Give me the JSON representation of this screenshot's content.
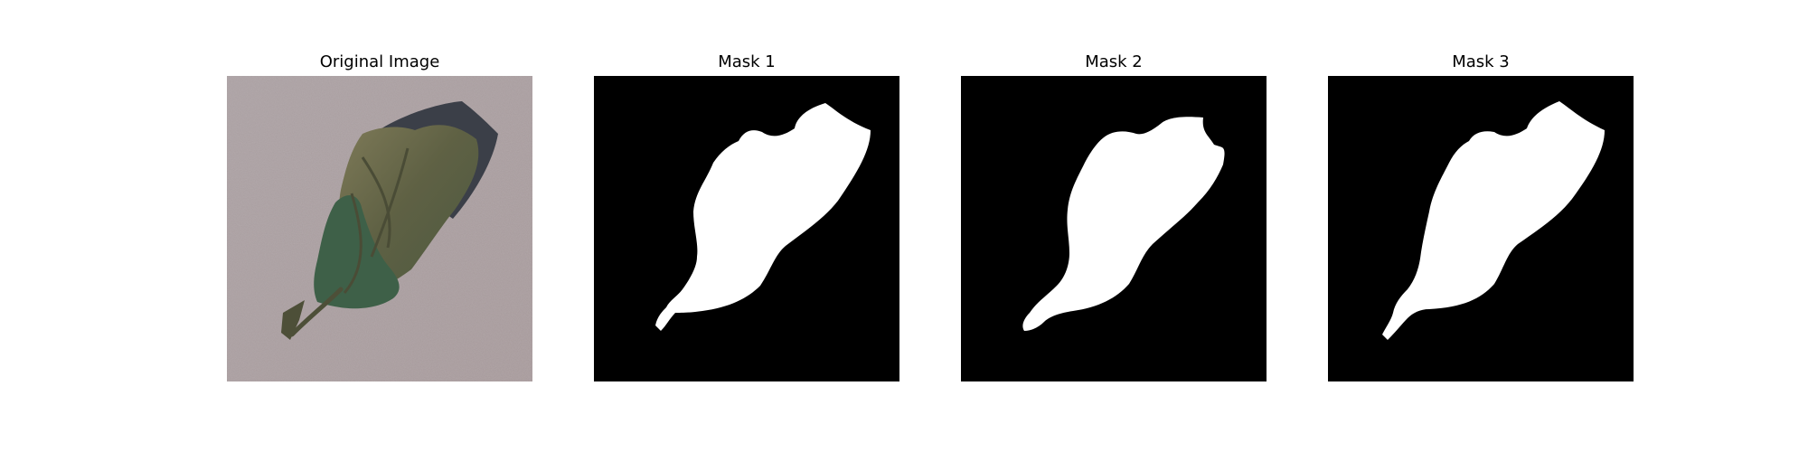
{
  "figure": {
    "panels": [
      {
        "title": "Original Image",
        "kind": "photo"
      },
      {
        "title": "Mask 1",
        "kind": "mask"
      },
      {
        "title": "Mask 2",
        "kind": "mask"
      },
      {
        "title": "Mask 3",
        "kind": "mask"
      }
    ],
    "colors": {
      "background": "#ffffff",
      "mask_background": "#000000",
      "mask_foreground": "#ffffff",
      "photo_ground": "#a89b9d",
      "leaf_dry": "#6f6a4a",
      "leaf_green": "#3e6048",
      "shadow": "#3b3f48"
    }
  }
}
